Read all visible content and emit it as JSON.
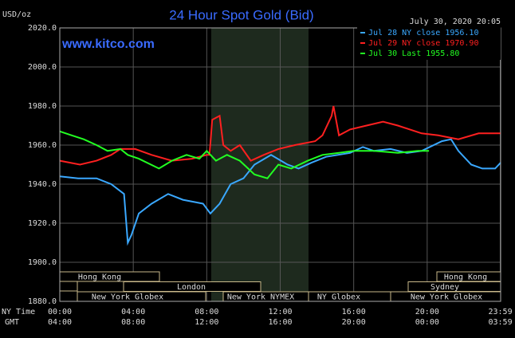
{
  "chart_data": {
    "type": "line",
    "title": "24 Hour Spot Gold (Bid)",
    "y_label": "USD/oz",
    "timestamp": "July 30, 2020 20:05",
    "watermark": "www.kitco.com",
    "x_row_labels": [
      "NY Time",
      "GMT"
    ],
    "xlim": [
      0,
      24
    ],
    "ylim": [
      1880,
      2020
    ],
    "xticks": [
      {
        "value": 0,
        "label": "00:00"
      },
      {
        "value": 4,
        "label": "04:00"
      },
      {
        "value": 8,
        "label": "08:00"
      },
      {
        "value": 12,
        "label": "12:00"
      },
      {
        "value": 16,
        "label": "16:00"
      },
      {
        "value": 20,
        "label": "20:00"
      },
      {
        "value": 23.98,
        "label": "23:59"
      }
    ],
    "gmt_labels": [
      "04:00",
      "08:00",
      "12:00",
      "16:00",
      "20:00",
      "00:00",
      "03:59"
    ],
    "yticks": [
      {
        "value": 1880,
        "label": "1880.0"
      },
      {
        "value": 1900,
        "label": "1900.0"
      },
      {
        "value": 1920,
        "label": "1920.0"
      },
      {
        "value": 1940,
        "label": "1940.0"
      },
      {
        "value": 1960,
        "label": "1960.0"
      },
      {
        "value": 1980,
        "label": "1980.0"
      },
      {
        "value": 2000,
        "label": "2000.0"
      },
      {
        "value": 2020,
        "label": "2020.0"
      }
    ],
    "grid": true,
    "sessions": [
      "Hong Kong",
      "London",
      "New York Globex",
      "New York NYMEX",
      "NY Globex",
      "Sydney",
      "Hong Kong",
      "New York Globex"
    ],
    "series": [
      {
        "name": "Jul 28 NY close 1956.10",
        "color": "#3aa8ff",
        "x": [
          0,
          1,
          2,
          2.8,
          3.5,
          3.7,
          3.9,
          4.3,
          5,
          5.9,
          6.7,
          7.8,
          8.2,
          8.7,
          9.3,
          10,
          10.6,
          11.5,
          12.4,
          13,
          13.7,
          14.5,
          15.8,
          16.5,
          17.1,
          18,
          18.9,
          19.7,
          20.8,
          21.3,
          21.7,
          22.4,
          23,
          23.7,
          24
        ],
        "values": [
          1944,
          1943,
          1943,
          1940,
          1935,
          1910,
          1914,
          1925,
          1930,
          1935,
          1932,
          1930,
          1925,
          1930,
          1940,
          1943,
          1950,
          1955,
          1950,
          1948,
          1951,
          1954,
          1956,
          1959,
          1957,
          1958,
          1956,
          1957,
          1962,
          1963,
          1957,
          1950,
          1948,
          1948,
          1951
        ]
      },
      {
        "name": "Jul 29 NY close 1970.90",
        "color": "#ff2020",
        "x": [
          0,
          1.1,
          2,
          2.8,
          3.3,
          4.1,
          5,
          6.1,
          7.2,
          8,
          8.15,
          8.3,
          8.7,
          8.9,
          9.3,
          9.8,
          10.4,
          11.1,
          11.9,
          12.8,
          13.9,
          14.3,
          14.8,
          14.9,
          15.2,
          15.8,
          16.7,
          17.6,
          18.4,
          19.7,
          20.6,
          21.7,
          22.8,
          24
        ],
        "values": [
          1952,
          1950,
          1952,
          1955,
          1958,
          1958,
          1955,
          1952,
          1953,
          1955,
          1955,
          1973,
          1975,
          1960,
          1957,
          1960,
          1952,
          1955,
          1958,
          1960,
          1962,
          1965,
          1975,
          1980,
          1965,
          1968,
          1970,
          1972,
          1970,
          1966,
          1965,
          1963,
          1966,
          1966
        ]
      },
      {
        "name": "Jul 30 Last 1955.80",
        "color": "#22ff22",
        "x": [
          0,
          0.65,
          1.3,
          2,
          2.6,
          3.3,
          3.7,
          4.3,
          5.4,
          6.1,
          6.9,
          7.6,
          8,
          8.5,
          9.1,
          9.8,
          10.6,
          11.3,
          11.9,
          12.6,
          13.5,
          14.3,
          15.2,
          16,
          17.1,
          18.4,
          19.5,
          20.1
        ],
        "values": [
          1967,
          1965,
          1963,
          1960,
          1957,
          1958,
          1955,
          1953,
          1948,
          1952,
          1955,
          1953,
          1957,
          1952,
          1955,
          1952,
          1945,
          1943,
          1950,
          1948,
          1952,
          1955,
          1956,
          1957,
          1957,
          1956,
          1957,
          1957
        ]
      }
    ]
  }
}
